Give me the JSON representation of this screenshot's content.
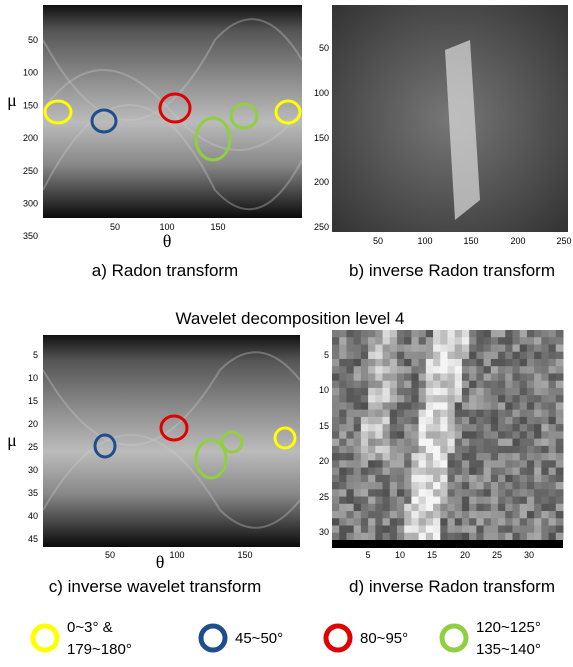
{
  "panels": [
    {
      "caption": "a) Radon transform",
      "xlabel": "θ",
      "ylabel": "μ",
      "xticks": [
        "50",
        "100",
        "150"
      ],
      "yticks": [
        "50",
        "100",
        "150",
        "200",
        "250",
        "300",
        "350"
      ]
    },
    {
      "caption": "b) inverse Radon transform",
      "xticks": [
        "50",
        "100",
        "150",
        "200",
        "250"
      ],
      "yticks": [
        "50",
        "100",
        "150",
        "200",
        "250"
      ]
    },
    {
      "caption": "c) inverse wavelet transform",
      "xlabel": "θ",
      "ylabel": "μ",
      "xticks": [
        "50",
        "100",
        "150"
      ],
      "yticks": [
        "5",
        "10",
        "15",
        "20",
        "25",
        "30",
        "35",
        "40",
        "45"
      ]
    },
    {
      "caption": "d) inverse Radon transform",
      "xticks": [
        "5",
        "10",
        "15",
        "20",
        "25",
        "30"
      ],
      "yticks": [
        "5",
        "10",
        "15",
        "20",
        "25",
        "30"
      ]
    }
  ],
  "section_title": "Wavelet decomposition level 4",
  "legend": [
    {
      "lines": [
        "0~3° &",
        "179~180°"
      ]
    },
    {
      "lines": [
        "45~50°"
      ]
    },
    {
      "lines": [
        "80~95°"
      ]
    },
    {
      "lines": [
        "120~125°",
        "135~140°"
      ]
    }
  ]
}
